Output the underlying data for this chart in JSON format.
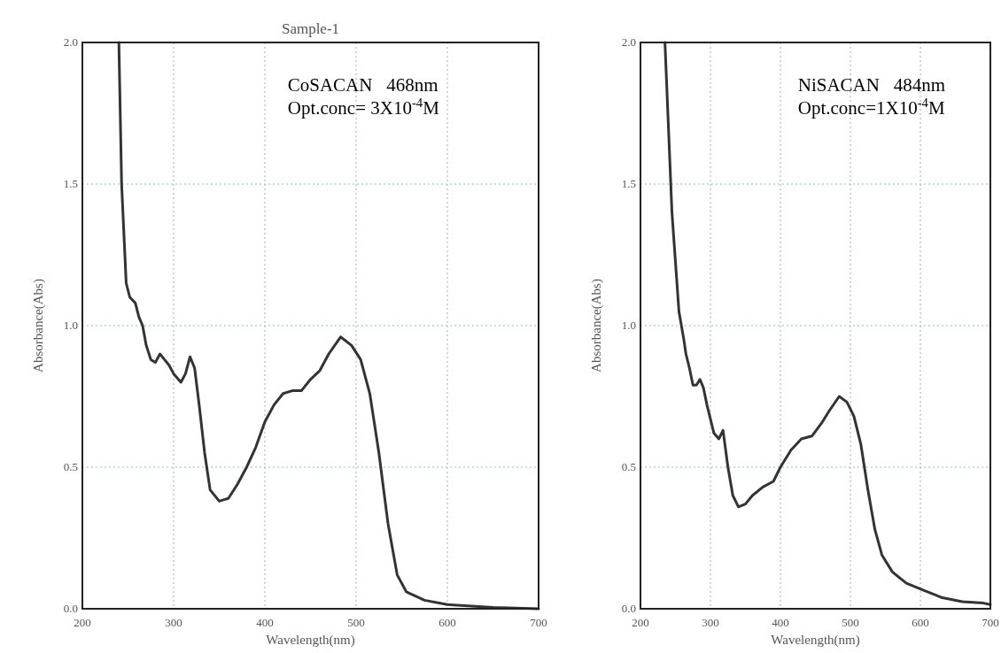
{
  "chart_data": [
    {
      "type": "line",
      "title": "Sample-1",
      "xlabel": "Wavelength(nm)",
      "ylabel": "Absorbance(Abs)",
      "annotations": [
        "CoSACAN   468nm",
        "Opt.conc= 3X10$^{-4}$M"
      ],
      "xlim": [
        200,
        700
      ],
      "ylim": [
        0,
        2
      ],
      "xticks": [
        200,
        300,
        400,
        500,
        600,
        700
      ],
      "yticks": [
        {
          "value": 0,
          "label": "0.0"
        },
        {
          "value": 0.5,
          "label": "0.5"
        },
        {
          "value": 1,
          "label": "1.0"
        },
        {
          "value": 1.5,
          "label": "1.5"
        },
        {
          "value": 2,
          "label": "2.0"
        }
      ],
      "grid": true,
      "marker": "none",
      "line_style": "solid",
      "series": [
        {
          "color": "#333333",
          "x": [
            240,
            243,
            248,
            252,
            258,
            262,
            266,
            270,
            275,
            280,
            285,
            290,
            295,
            300,
            308,
            313,
            318,
            323,
            328,
            334,
            340,
            350,
            360,
            370,
            380,
            390,
            400,
            410,
            420,
            430,
            440,
            450,
            460,
            470,
            483,
            495,
            505,
            515,
            525,
            535,
            545,
            555,
            575,
            600,
            650,
            700
          ],
          "values": [
            2.0,
            1.5,
            1.15,
            1.1,
            1.08,
            1.03,
            1.0,
            0.93,
            0.88,
            0.87,
            0.9,
            0.88,
            0.86,
            0.83,
            0.8,
            0.83,
            0.89,
            0.85,
            0.72,
            0.55,
            0.42,
            0.38,
            0.39,
            0.44,
            0.5,
            0.57,
            0.66,
            0.72,
            0.76,
            0.77,
            0.77,
            0.81,
            0.84,
            0.9,
            0.96,
            0.93,
            0.88,
            0.76,
            0.55,
            0.3,
            0.12,
            0.06,
            0.03,
            0.015,
            0.005,
            0.0
          ]
        }
      ]
    },
    {
      "type": "line",
      "xlabel": "Wavelength(nm)",
      "ylabel": "Absorbance(Abs)",
      "annotations": [
        "NiSACAN   484nm",
        "Opt.conc=1X10$^{-4}$M"
      ],
      "xlim": [
        200,
        700
      ],
      "ylim": [
        0,
        2
      ],
      "xticks": [
        200,
        300,
        400,
        500,
        600,
        700
      ],
      "yticks": [
        {
          "value": 0,
          "label": "0.0"
        },
        {
          "value": 0.5,
          "label": "0.5"
        },
        {
          "value": 1,
          "label": "1.0"
        },
        {
          "value": 1.5,
          "label": "1.5"
        },
        {
          "value": 2,
          "label": "2.0"
        }
      ],
      "grid": true,
      "marker": "none",
      "line_style": "solid",
      "series": [
        {
          "color": "#333333",
          "x": [
            235,
            245,
            255,
            262,
            265,
            270,
            275,
            280,
            285,
            290,
            295,
            305,
            312,
            318,
            325,
            332,
            340,
            350,
            360,
            375,
            390,
            400,
            415,
            430,
            445,
            460,
            470,
            484,
            495,
            505,
            515,
            525,
            535,
            545,
            560,
            580,
            600,
            630,
            660,
            690,
            700
          ],
          "values": [
            2.0,
            1.4,
            1.05,
            0.95,
            0.9,
            0.85,
            0.79,
            0.79,
            0.81,
            0.78,
            0.72,
            0.62,
            0.6,
            0.63,
            0.5,
            0.4,
            0.36,
            0.37,
            0.4,
            0.43,
            0.45,
            0.5,
            0.56,
            0.6,
            0.61,
            0.66,
            0.7,
            0.75,
            0.73,
            0.68,
            0.58,
            0.42,
            0.28,
            0.19,
            0.13,
            0.09,
            0.07,
            0.04,
            0.025,
            0.02,
            0.015
          ]
        }
      ]
    }
  ]
}
